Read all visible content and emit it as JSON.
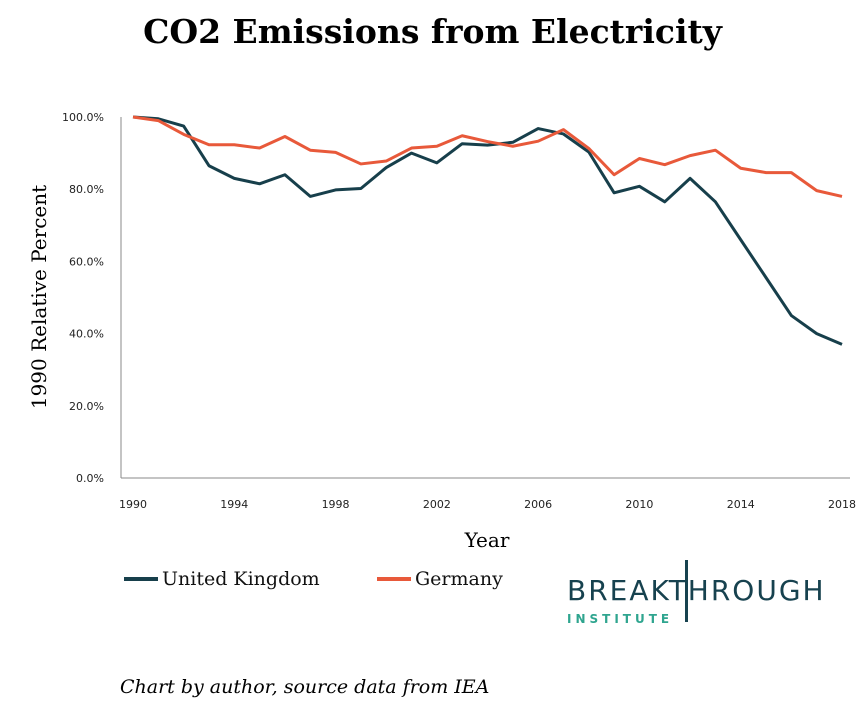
{
  "title": "CO2 Emissions from Electricity",
  "credit": "Chart by author, source data from IEA",
  "logo": {
    "main_text": "BREAKTHROUGH",
    "sub_text": "INSTITUTE",
    "color": "#17424f",
    "accent": "#2fa58f"
  },
  "chart_data": {
    "type": "line",
    "title": "CO2 Emissions from Electricity",
    "xlabel": "Year",
    "ylabel": "1990 Relative Percent",
    "xlim": [
      1990,
      2018
    ],
    "ylim": [
      0,
      100
    ],
    "x_ticks": [
      "1990",
      "1994",
      "1998",
      "2002",
      "2006",
      "2010",
      "2014",
      "2018"
    ],
    "y_ticks": [
      "0.0%",
      "20.0%",
      "40.0%",
      "60.0%",
      "80.0%",
      "100.0%"
    ],
    "grid": false,
    "legend": "bottom",
    "x": [
      1990,
      1991,
      1992,
      1993,
      1994,
      1995,
      1996,
      1997,
      1998,
      1999,
      2000,
      2001,
      2002,
      2003,
      2004,
      2005,
      2006,
      2007,
      2008,
      2009,
      2010,
      2011,
      2012,
      2013,
      2014,
      2015,
      2016,
      2017,
      2018
    ],
    "series": [
      {
        "name": "United Kingdom",
        "color": "#173f4b",
        "values": [
          100.0,
          99.5,
          97.5,
          86.5,
          83.0,
          81.5,
          84.0,
          78.0,
          79.8,
          80.2,
          86.0,
          90.0,
          87.3,
          92.6,
          92.2,
          93.0,
          96.8,
          95.3,
          90.3,
          79.0,
          80.8,
          76.5,
          83.0,
          76.5,
          66.0,
          55.5,
          45.0,
          40.0,
          37.0
        ]
      },
      {
        "name": "Germany",
        "color": "#e8593a",
        "values": [
          100.0,
          99.0,
          95.2,
          92.3,
          92.3,
          91.4,
          94.6,
          90.8,
          90.2,
          87.0,
          87.8,
          91.4,
          91.9,
          94.8,
          93.2,
          91.9,
          93.3,
          96.5,
          91.3,
          84.0,
          88.5,
          86.8,
          89.3,
          90.8,
          85.8,
          84.6,
          84.6,
          79.6,
          78.0
        ]
      }
    ]
  }
}
